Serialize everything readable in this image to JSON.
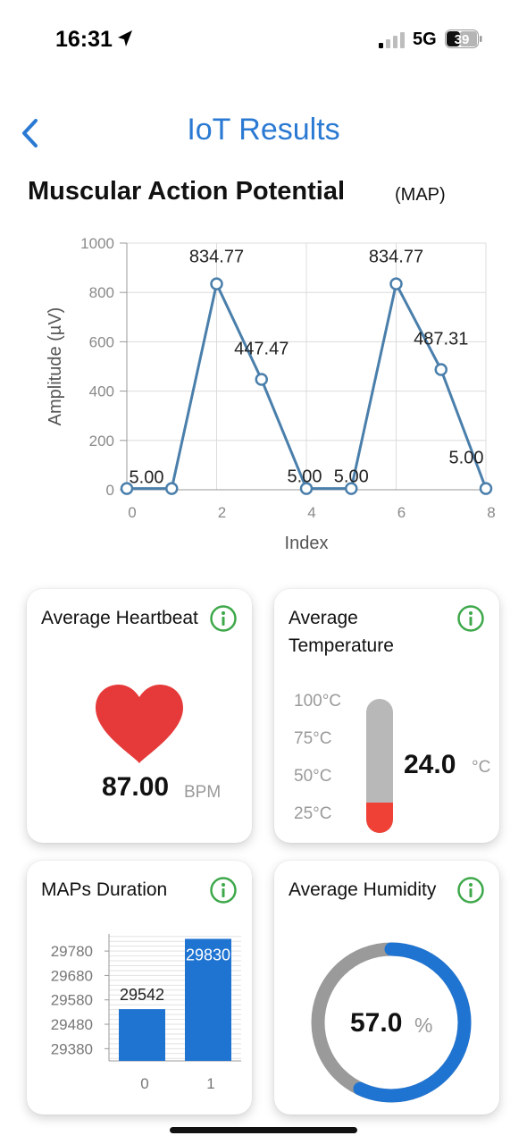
{
  "status_bar": {
    "time": "16:31",
    "network": "5G",
    "battery": "39",
    "icons": [
      "location-arrow-icon",
      "signal-bars-icon",
      "battery-icon"
    ]
  },
  "header": {
    "title": "IoT Results",
    "back_icon": "chevron-left-icon"
  },
  "colors": {
    "accent": "#2a7ad3",
    "line": "#4a7fab",
    "heart": "#e63a3a",
    "thermo_fill": "#f04136",
    "bar": "#1f74d2",
    "info": "#3ea84a"
  },
  "map_section": {
    "title": "Muscular Action Potential",
    "subtitle": "(MAP)"
  },
  "chart_data": [
    {
      "type": "line",
      "xlabel": "Index",
      "ylabel": "Amplitude (µV)",
      "x": [
        0,
        1,
        2,
        3,
        4,
        5,
        6,
        7,
        8
      ],
      "y": [
        5.0,
        5.0,
        834.77,
        447.47,
        5.0,
        5.0,
        834.77,
        487.31,
        5.0
      ],
      "data_labels": [
        "5.00",
        "",
        "834.77",
        "447.47",
        "5.00",
        "5.00",
        "834.77",
        "487.31",
        "5.00"
      ],
      "xlim": [
        0,
        8
      ],
      "ylim": [
        0,
        1000
      ],
      "xticks": [
        "0",
        "2",
        "4",
        "6",
        "8"
      ],
      "yticks": [
        "0",
        "200",
        "400",
        "600",
        "800",
        "1000"
      ],
      "grid": true
    },
    {
      "type": "bar",
      "categories": [
        "0",
        "1"
      ],
      "values": [
        29542,
        29830
      ],
      "data_labels": [
        "29542",
        "29830"
      ],
      "ylim": [
        29330,
        29850
      ],
      "yticks": [
        "29380",
        "29480",
        "29580",
        "29680",
        "29780"
      ],
      "grid": true
    }
  ],
  "cards": {
    "heartbeat": {
      "title": "Average Heartbeat",
      "value": "87.00",
      "unit": "BPM",
      "icon": "heart-icon"
    },
    "temperature": {
      "title": "Average Temperature",
      "value": "24.0",
      "unit": "°C",
      "scale": [
        "100°C",
        "75°C",
        "50°C",
        "25°C"
      ],
      "level_fraction": 0.23
    },
    "duration": {
      "title": "MAPs Duration"
    },
    "humidity": {
      "title": "Average Humidity",
      "value": "57.0",
      "unit": "%",
      "percent": 57.0
    }
  }
}
